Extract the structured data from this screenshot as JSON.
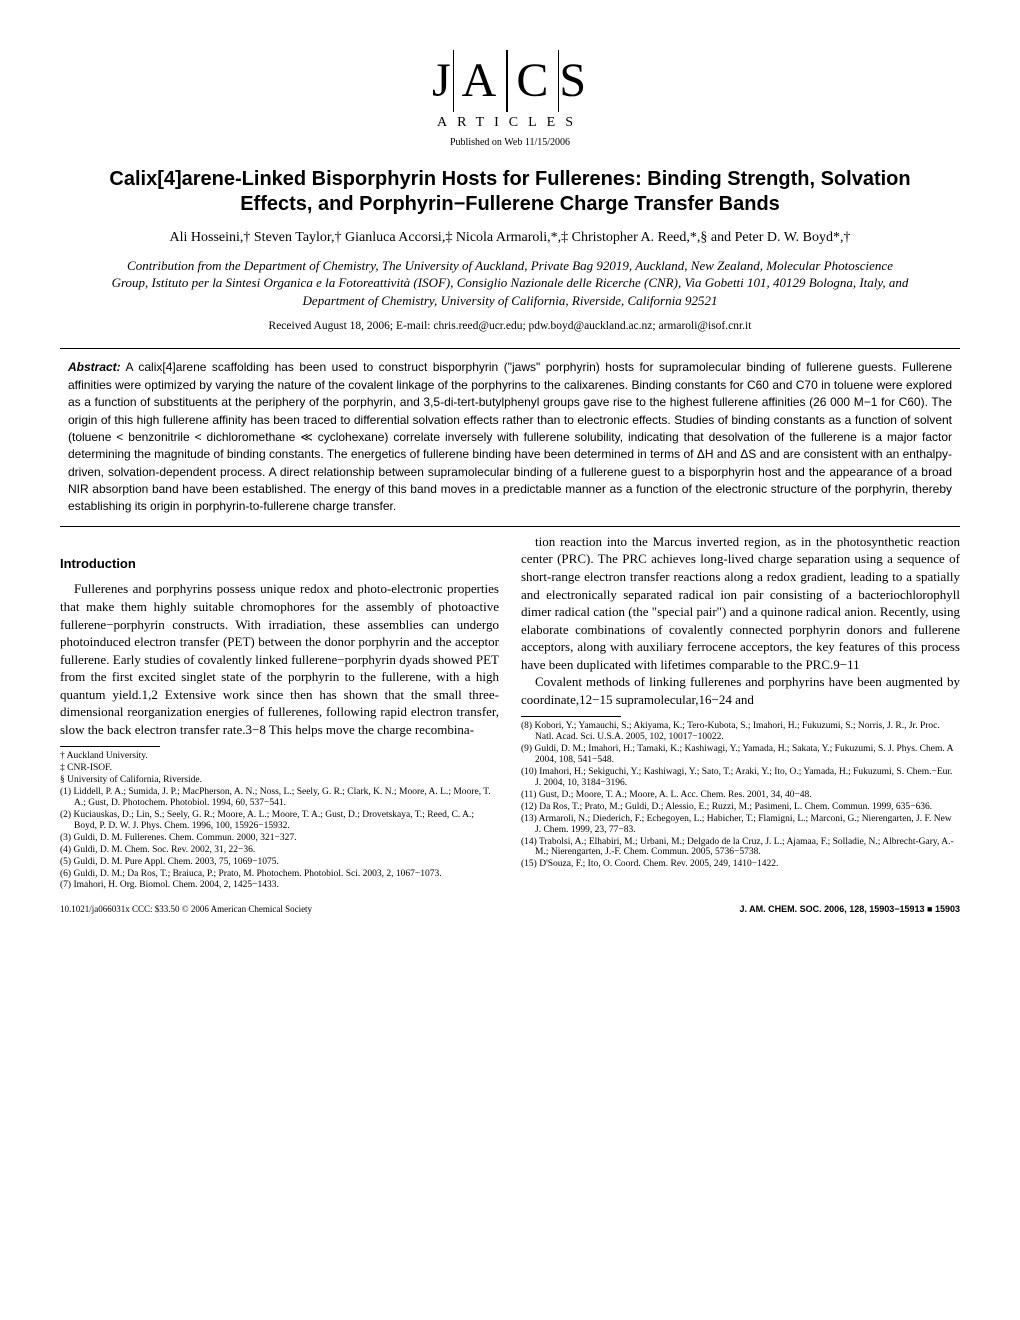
{
  "header": {
    "logo_letters": "J|A|C|S",
    "articles_label": "ARTICLES",
    "pubdate": "Published on Web 11/15/2006"
  },
  "title": "Calix[4]arene-Linked Bisporphyrin Hosts for Fullerenes: Binding Strength, Solvation Effects, and Porphyrin−Fullerene Charge Transfer Bands",
  "authors": "Ali Hosseini,† Steven Taylor,† Gianluca Accorsi,‡ Nicola Armaroli,*,‡ Christopher A. Reed,*,§ and Peter D. W. Boyd*,†",
  "affiliation": "Contribution from the Department of Chemistry, The University of Auckland, Private Bag 92019, Auckland, New Zealand, Molecular Photoscience Group, Istituto per la Sintesi Organica e la Fotoreattività (ISOF), Consiglio Nazionale delle Ricerche (CNR), Via Gobetti 101, 40129 Bologna, Italy, and Department of Chemistry, University of California, Riverside, California 92521",
  "received": "Received August 18, 2006;  E-mail: chris.reed@ucr.edu; pdw.boyd@auckland.ac.nz; armaroli@isof.cnr.it",
  "abstract_label": "Abstract:",
  "abstract": "A calix[4]arene scaffolding has been used to construct bisporphyrin (\"jaws\" porphyrin) hosts for supramolecular binding of fullerene guests. Fullerene affinities were optimized by varying the nature of the covalent linkage of the porphyrins to the calixarenes. Binding constants for C60 and C70 in toluene were explored as a function of substituents at the periphery of the porphyrin, and 3,5-di-tert-butylphenyl groups gave rise to the highest fullerene affinities (26 000 M−1 for C60). The origin of this high fullerene affinity has been traced to differential solvation effects rather than to electronic effects. Studies of binding constants as a function of solvent (toluene < benzonitrile < dichloromethane ≪ cyclohexane) correlate inversely with fullerene solubility, indicating that desolvation of the fullerene is a major factor determining the magnitude of binding constants. The energetics of fullerene binding have been determined in terms of ΔH and ΔS and are consistent with an enthalpy-driven, solvation-dependent process. A direct relationship between supramolecular binding of a fullerene guest to a bisporphyrin host and the appearance of a broad NIR absorption band have been established. The energy of this band moves in a predictable manner as a function of the electronic structure of the porphyrin, thereby establishing its origin in porphyrin-to-fullerene charge transfer.",
  "section_intro": "Introduction",
  "body_p1": "Fullerenes and porphyrins possess unique redox and photo-electronic properties that make them highly suitable chromophores for the assembly of photoactive fullerene−porphyrin constructs. With irradiation, these assemblies can undergo photoinduced electron transfer (PET) between the donor porphyrin and the acceptor fullerene. Early studies of covalently linked fullerene−porphyrin dyads showed PET from the first excited singlet state of the porphyrin to the fullerene, with a high quantum yield.1,2 Extensive work since then has shown that the small three-dimensional reorganization energies of fullerenes, following rapid electron transfer, slow the back electron transfer rate.3−8 This helps move the charge recombina-",
  "body_p2": "tion reaction into the Marcus inverted region, as in the photosynthetic reaction center (PRC). The PRC achieves long-lived charge separation using a sequence of short-range electron transfer reactions along a redox gradient, leading to a spatially and electronically separated radical ion pair consisting of a bacteriochlorophyll dimer radical cation (the \"special pair\") and a quinone radical anion. Recently, using elaborate combinations of covalently connected porphyrin donors and fullerene acceptors, along with auxiliary ferrocene acceptors, the key features of this process have been duplicated with lifetimes comparable to the PRC.9−11",
  "body_p3": "Covalent methods of linking fullerenes and porphyrins have been augmented by coordinate,12−15 supramolecular,16−24 and",
  "footnotes_left": [
    "† Auckland University.",
    "‡ CNR-ISOF.",
    "§ University of California, Riverside.",
    "(1) Liddell, P. A.; Sumida, J. P.; MacPherson, A. N.; Noss, L.; Seely, G. R.; Clark, K. N.; Moore, A. L.; Moore, T. A.; Gust, D. Photochem. Photobiol. 1994, 60, 537−541.",
    "(2) Kuciauskas, D.; Lin, S.; Seely, G. R.; Moore, A. L.; Moore, T. A.; Gust, D.; Drovetskaya, T.; Reed, C. A.; Boyd, P. D. W. J. Phys. Chem. 1996, 100, 15926−15932.",
    "(3) Guldi, D. M. Fullerenes. Chem. Commun. 2000, 321−327.",
    "(4) Guldi, D. M. Chem. Soc. Rev. 2002, 31, 22−36.",
    "(5) Guldi, D. M. Pure Appl. Chem. 2003, 75, 1069−1075.",
    "(6) Guldi, D. M.; Da Ros, T.; Braiuca, P.; Prato, M. Photochem. Photobiol. Sci. 2003, 2, 1067−1073.",
    "(7) Imahori, H. Org. Biomol. Chem. 2004, 2, 1425−1433."
  ],
  "footnotes_right": [
    "(8) Kobori, Y.; Yamauchi, S.; Akiyama, K.; Tero-Kubota, S.; Imahori, H.; Fukuzumi, S.; Norris, J. R., Jr. Proc. Natl. Acad. Sci. U.S.A. 2005, 102, 10017−10022.",
    "(9) Guldi, D. M.; Imahori, H.; Tamaki, K.; Kashiwagi, Y.; Yamada, H.; Sakata, Y.; Fukuzumi, S. J. Phys. Chem. A 2004, 108, 541−548.",
    "(10) Imahori, H.; Sekiguchi, Y.; Kashiwagi, Y.; Sato, T.; Araki, Y.; Ito, O.; Yamada, H.; Fukuzumi, S. Chem.−Eur. J. 2004, 10, 3184−3196.",
    "(11) Gust, D.; Moore, T. A.; Moore, A. L. Acc. Chem. Res. 2001, 34, 40−48.",
    "(12) Da Ros, T.; Prato, M.; Guldi, D.; Alessio, E.; Ruzzi, M.; Pasimeni, L. Chem. Commun. 1999, 635−636.",
    "(13) Armaroli, N.; Diederich, F.; Echegoyen, L.; Habicher, T.; Flamigni, L.; Marconi, G.; Nierengarten, J. F. New J. Chem. 1999, 23, 77−83.",
    "(14) Trabolsi, A.; Elhabiri, M.; Urbani, M.; Delgado de la Cruz, J. L.; Ajamaa, F.; Solladie, N.; Albrecht-Gary, A.-M.; Nierengarten, J.-F. Chem. Commun. 2005, 5736−5738.",
    "(15) D'Souza, F.; Ito, O. Coord. Chem. Rev. 2005, 249, 1410−1422."
  ],
  "footer": {
    "left": "10.1021/ja066031x CCC: $33.50 © 2006 American Chemical Society",
    "right": "J. AM. CHEM. SOC. 2006, 128, 15903−15913 ■ 15903"
  }
}
